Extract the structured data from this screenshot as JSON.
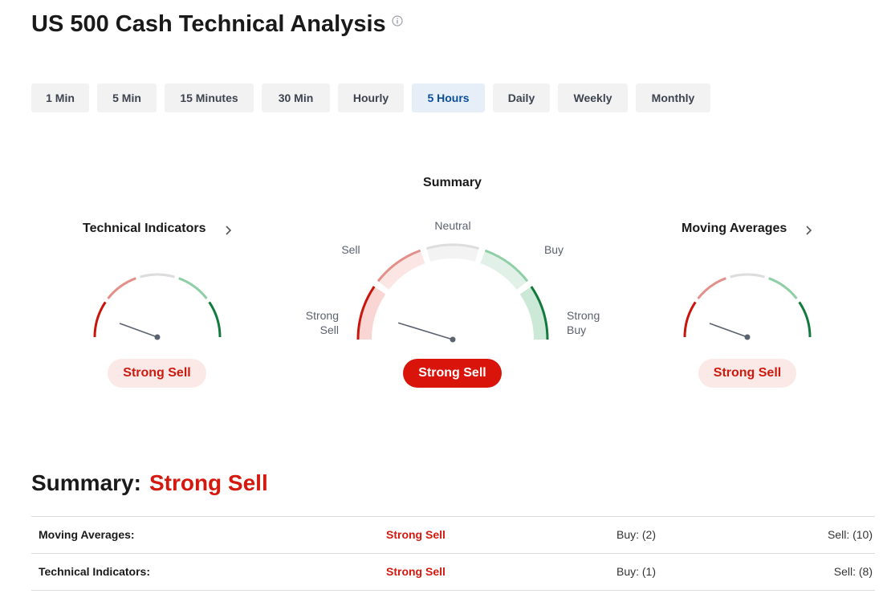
{
  "header": {
    "title": "US 500 Cash Technical Analysis"
  },
  "timeframes": {
    "active": "5 Hours",
    "items": [
      "1 Min",
      "5 Min",
      "15 Minutes",
      "30 Min",
      "Hourly",
      "5 Hours",
      "Daily",
      "Weekly",
      "Monthly"
    ]
  },
  "gauges": {
    "summary_heading": "Summary",
    "labels": {
      "neutral": "Neutral",
      "sell": "Sell",
      "buy": "Buy",
      "strong_sell_1": "Strong",
      "strong_sell_2": "Sell",
      "strong_buy_1": "Strong",
      "strong_buy_2": "Buy"
    },
    "technical": {
      "title": "Technical Indicators",
      "verdict": "Strong Sell"
    },
    "summary": {
      "verdict": "Strong Sell"
    },
    "moving": {
      "title": "Moving Averages",
      "verdict": "Strong Sell"
    }
  },
  "summary": {
    "label": "Summary:",
    "value": "Strong Sell"
  },
  "table": {
    "rows": [
      {
        "name": "Moving Averages:",
        "action": "Strong Sell",
        "buy": "Buy: (2)",
        "sell": "Sell: (10)"
      },
      {
        "name": "Technical Indicators:",
        "action": "Strong Sell",
        "buy": "Buy: (1)",
        "sell": "Sell: (8)"
      }
    ]
  },
  "colors": {
    "strong_sell": "#c9160c",
    "sell": "#e3908a",
    "neutral": "#dddddd",
    "buy": "#8fcfa6",
    "strong_buy": "#137a3e",
    "active_tab": "#0b4e99"
  },
  "icons": {
    "info": "info-circle-icon",
    "chevron": "chevron-right-icon"
  }
}
